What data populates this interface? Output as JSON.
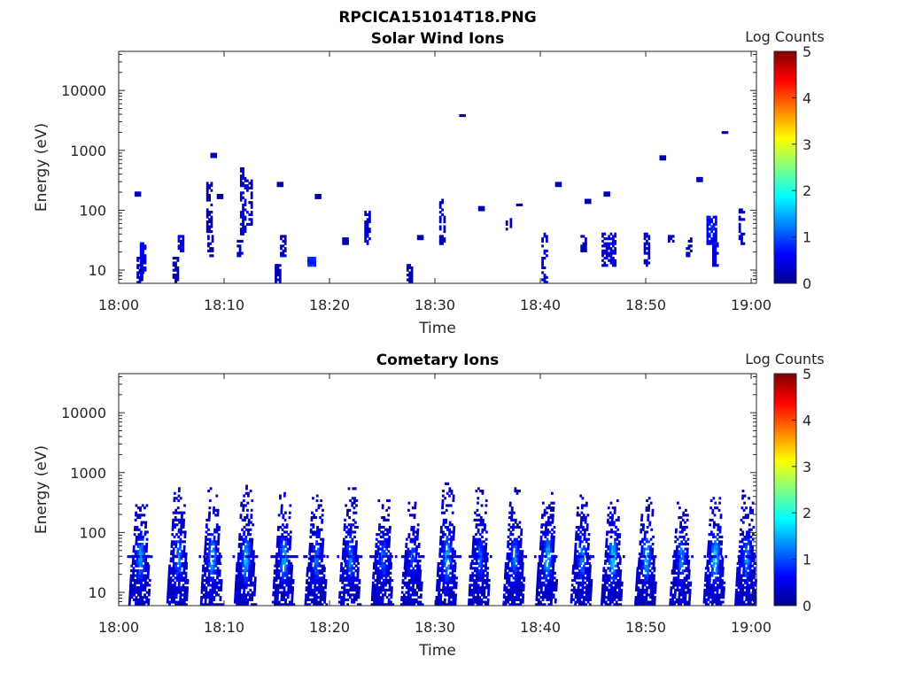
{
  "figure_title": "RPCICA151014T18.PNG",
  "chart_data": [
    {
      "type": "heatmap",
      "title": "Solar Wind Ions",
      "xlabel": "Time",
      "ylabel": "Energy (eV)",
      "x_ticks": [
        "18:00",
        "18:10",
        "18:20",
        "18:30",
        "18:40",
        "18:50",
        "19:00"
      ],
      "x_range_minutes": [
        0,
        60.5
      ],
      "y_ticks": [
        "10",
        "100",
        "1000",
        "10000"
      ],
      "y_scale": "log",
      "y_range": [
        6,
        45000
      ],
      "colorbar": {
        "label": "Log Counts",
        "ticks": [
          "0",
          "1",
          "2",
          "3",
          "4",
          "5"
        ],
        "range": [
          0,
          5
        ],
        "colormap": "jet"
      },
      "blobs": [
        {
          "t": 1.9,
          "emin": 6,
          "emax": 16,
          "level": 0.05,
          "dens": 0.7
        },
        {
          "t": 2.2,
          "emin": 8,
          "emax": 28,
          "level": 0.1,
          "dens": 0.7
        },
        {
          "t": 1.7,
          "emax": 190,
          "emin": 180,
          "level": 0.05,
          "dens": 1
        },
        {
          "t": 5.3,
          "emin": 6,
          "emax": 16,
          "level": 0.05,
          "dens": 0.7
        },
        {
          "t": 5.8,
          "emin": 22,
          "emax": 38,
          "level": 0.1,
          "dens": 0.8
        },
        {
          "t": 8.5,
          "emin": 40,
          "emax": 280,
          "level": 0.05,
          "dens": 0.55
        },
        {
          "t": 8.6,
          "emin": 18,
          "emax": 38,
          "level": 0.05,
          "dens": 0.6
        },
        {
          "t": 8.9,
          "emin": 800,
          "emax": 860,
          "level": 0.05,
          "dens": 1
        },
        {
          "t": 9.5,
          "emin": 160,
          "emax": 180,
          "level": 0.05,
          "dens": 1
        },
        {
          "t": 11.7,
          "emin": 40,
          "emax": 480,
          "level": 0.08,
          "dens": 0.6
        },
        {
          "t": 11.4,
          "emin": 18,
          "emax": 35,
          "level": 0.05,
          "dens": 0.6
        },
        {
          "t": 12.3,
          "emin": 60,
          "emax": 300,
          "level": 0.05,
          "dens": 0.5
        },
        {
          "t": 15.0,
          "emin": 6,
          "emax": 12,
          "level": 0.05,
          "dens": 0.8
        },
        {
          "t": 15.5,
          "emin": 18,
          "emax": 38,
          "level": 0.05,
          "dens": 0.7
        },
        {
          "t": 15.2,
          "emin": 260,
          "emax": 280,
          "level": 0.05,
          "dens": 1
        },
        {
          "t": 18.2,
          "emin": 12,
          "emax": 16,
          "level": 0.15,
          "dens": 1,
          "w": 0.6
        },
        {
          "t": 18.8,
          "emin": 160,
          "emax": 175,
          "level": 0.05,
          "dens": 1
        },
        {
          "t": 21.4,
          "emin": 28,
          "emax": 34,
          "level": 0.05,
          "dens": 1
        },
        {
          "t": 23.5,
          "emin": 28,
          "emax": 90,
          "level": 0.08,
          "dens": 0.6
        },
        {
          "t": 27.5,
          "emin": 6,
          "emax": 12,
          "level": 0.05,
          "dens": 0.8
        },
        {
          "t": 28.5,
          "emin": 34,
          "emax": 38,
          "level": 0.05,
          "dens": 1
        },
        {
          "t": 30.6,
          "emin": 28,
          "emax": 150,
          "level": 0.05,
          "dens": 0.5
        },
        {
          "t": 32.5,
          "emin": 3800,
          "emax": 4000,
          "level": 0.05,
          "dens": 1
        },
        {
          "t": 34.3,
          "emin": 100,
          "emax": 108,
          "level": 0.05,
          "dens": 1
        },
        {
          "t": 36.9,
          "emin": 50,
          "emax": 68,
          "level": 0.05,
          "dens": 0.7
        },
        {
          "t": 37.9,
          "emin": 120,
          "emax": 128,
          "level": 0.05,
          "dens": 1
        },
        {
          "t": 40.3,
          "emin": 6,
          "emax": 40,
          "level": 0.08,
          "dens": 0.55
        },
        {
          "t": 41.6,
          "emin": 260,
          "emax": 275,
          "level": 0.05,
          "dens": 1
        },
        {
          "t": 44.0,
          "emin": 22,
          "emax": 38,
          "level": 0.05,
          "dens": 0.7
        },
        {
          "t": 44.4,
          "emin": 140,
          "emax": 150,
          "level": 0.05,
          "dens": 1
        },
        {
          "t": 46.4,
          "emin": 12,
          "emax": 40,
          "level": 0.1,
          "dens": 0.7,
          "w": 1.2
        },
        {
          "t": 46.2,
          "emin": 180,
          "emax": 195,
          "level": 0.05,
          "dens": 1
        },
        {
          "t": 50.0,
          "emin": 12,
          "emax": 40,
          "level": 0.08,
          "dens": 0.65
        },
        {
          "t": 51.5,
          "emin": 740,
          "emax": 780,
          "level": 0.05,
          "dens": 1
        },
        {
          "t": 52.3,
          "emin": 30,
          "emax": 38,
          "level": 0.05,
          "dens": 0.9
        },
        {
          "t": 54.0,
          "emin": 18,
          "emax": 32,
          "level": 0.05,
          "dens": 0.6
        },
        {
          "t": 55.0,
          "emin": 320,
          "emax": 340,
          "level": 0.05,
          "dens": 1
        },
        {
          "t": 56.2,
          "emin": 28,
          "emax": 80,
          "level": 0.12,
          "dens": 0.75,
          "w": 0.9
        },
        {
          "t": 56.5,
          "emin": 12,
          "emax": 30,
          "level": 0.08,
          "dens": 0.7
        },
        {
          "t": 57.4,
          "emin": 1950,
          "emax": 2050,
          "level": 0.05,
          "dens": 1
        },
        {
          "t": 59.0,
          "emin": 28,
          "emax": 100,
          "level": 0.05,
          "dens": 0.6
        }
      ]
    },
    {
      "type": "heatmap",
      "title": "Cometary Ions",
      "xlabel": "Time",
      "ylabel": "Energy (eV)",
      "x_ticks": [
        "18:00",
        "18:10",
        "18:20",
        "18:30",
        "18:40",
        "18:50",
        "19:00"
      ],
      "x_range_minutes": [
        0,
        60.5
      ],
      "y_ticks": [
        "10",
        "100",
        "1000",
        "10000"
      ],
      "y_scale": "log",
      "y_range": [
        6,
        45000
      ],
      "colorbar": {
        "label": "Log Counts",
        "ticks": [
          "0",
          "1",
          "2",
          "3",
          "4",
          "5"
        ],
        "range": [
          0,
          5
        ],
        "colormap": "jet"
      },
      "bursts": [
        {
          "t": 2.0,
          "emax": 450,
          "peak": 1.1
        },
        {
          "t": 5.6,
          "emax": 550,
          "peak": 0.9
        },
        {
          "t": 8.8,
          "emax": 560,
          "peak": 1.2
        },
        {
          "t": 12.0,
          "emax": 600,
          "peak": 1.3
        },
        {
          "t": 15.6,
          "emax": 450,
          "peak": 1.2
        },
        {
          "t": 18.7,
          "emax": 420,
          "peak": 0.9
        },
        {
          "t": 21.9,
          "emax": 550,
          "peak": 0.9
        },
        {
          "t": 25.0,
          "emax": 550,
          "peak": 0.8
        },
        {
          "t": 27.8,
          "emax": 300,
          "peak": 0.6
        },
        {
          "t": 31.1,
          "emax": 700,
          "peak": 1.2
        },
        {
          "t": 34.2,
          "emax": 550,
          "peak": 0.8
        },
        {
          "t": 37.5,
          "emax": 600,
          "peak": 0.9
        },
        {
          "t": 40.6,
          "emax": 550,
          "peak": 1.3
        },
        {
          "t": 43.9,
          "emax": 450,
          "peak": 1.0
        },
        {
          "t": 46.8,
          "emax": 380,
          "peak": 1.4
        },
        {
          "t": 50.0,
          "emax": 380,
          "peak": 1.3
        },
        {
          "t": 53.3,
          "emax": 300,
          "peak": 1.0
        },
        {
          "t": 56.5,
          "emax": 380,
          "peak": 1.5
        },
        {
          "t": 59.5,
          "emax": 550,
          "peak": 1.0
        }
      ]
    }
  ]
}
